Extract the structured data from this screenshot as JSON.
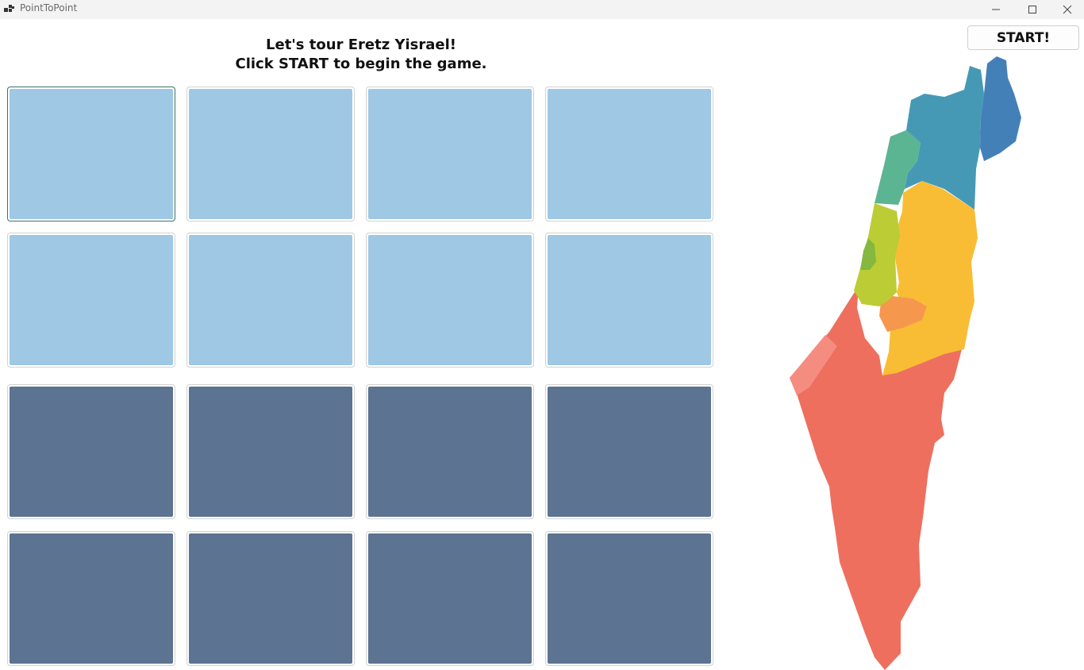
{
  "window": {
    "title": "PointToPoint",
    "icons": {
      "app": "app-icon",
      "minimize": "minimize-icon",
      "maximize": "maximize-icon",
      "close": "close-icon"
    }
  },
  "header": {
    "line1": "Let's tour Eretz Yisrael!",
    "line2": "Click START to begin the game."
  },
  "start_button": {
    "label": "START!"
  },
  "cards": {
    "rows": 4,
    "columns": 4,
    "colors": {
      "light": "#9ec8e4",
      "dark": "#5c7391"
    },
    "focused_index": 0
  },
  "map": {
    "name": "israel-districts-map",
    "colors": {
      "north_upper": "#4480b8",
      "north": "#4699b4",
      "haifa": "#5cb592",
      "central": "#bccc35",
      "tel_aviv": "#84b83e",
      "judea_samaria": "#f8bd34",
      "jerusalem": "#f5984e",
      "south": "#ee6f5e",
      "gaza": "#f48c80"
    }
  }
}
